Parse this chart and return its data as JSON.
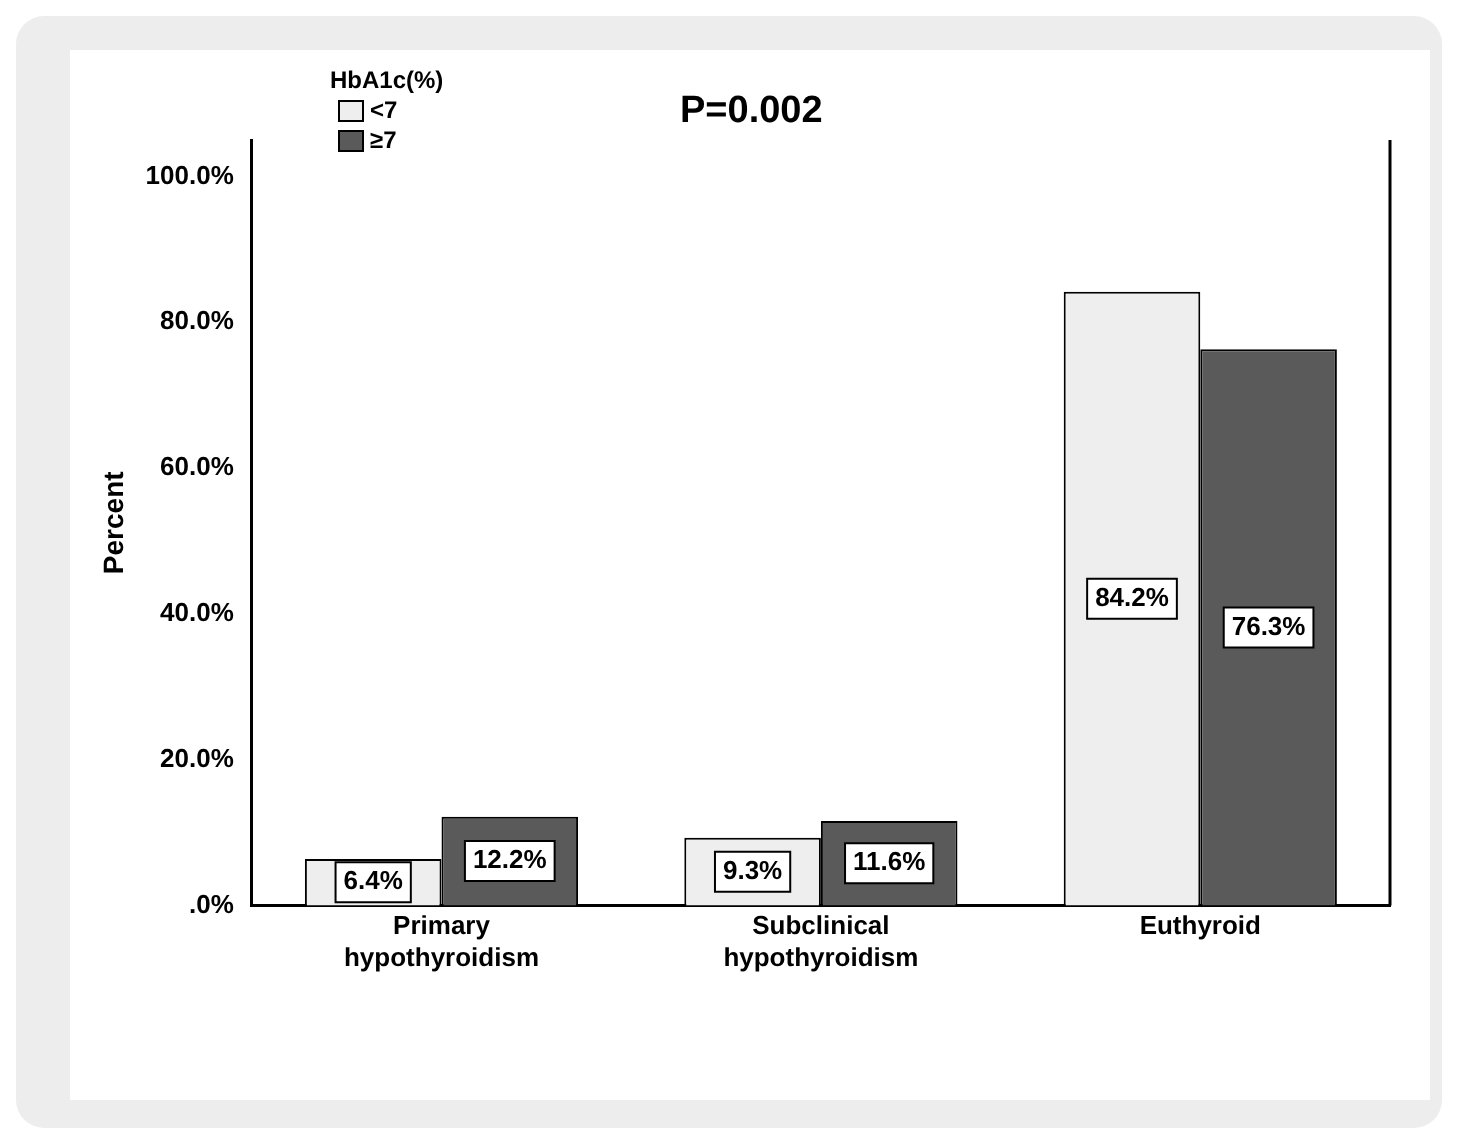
{
  "chart_data": {
    "type": "bar",
    "ylabel": "Percent",
    "legend_title": "HbA1c(%)",
    "legend": "top left",
    "annotations": [
      "P=0.002"
    ],
    "categories": [
      "Primary hypothyroidism",
      "Subclinical hypothyroidism",
      "Euthyroid"
    ],
    "series": [
      {
        "name": "<7",
        "color": "#eeeeee",
        "values": [
          6.4,
          9.3,
          84.2
        ],
        "value_labels": [
          "6.4%",
          "9.3%",
          "84.2%"
        ]
      },
      {
        "name": "≥7",
        "color": "#5a5a5a",
        "values": [
          12.2,
          11.6,
          76.3
        ],
        "value_labels": [
          "12.2%",
          "11.6%",
          "76.3%"
        ]
      }
    ],
    "ylim": [
      0,
      105
    ],
    "yticks": [
      {
        "value": 0,
        "label": ".0%"
      },
      {
        "value": 20,
        "label": "20.0%"
      },
      {
        "value": 40,
        "label": "40.0%"
      },
      {
        "value": 60,
        "label": "60.0%"
      },
      {
        "value": 80,
        "label": "80.0%"
      },
      {
        "value": 100,
        "label": "100.0%"
      }
    ],
    "grid": false
  }
}
